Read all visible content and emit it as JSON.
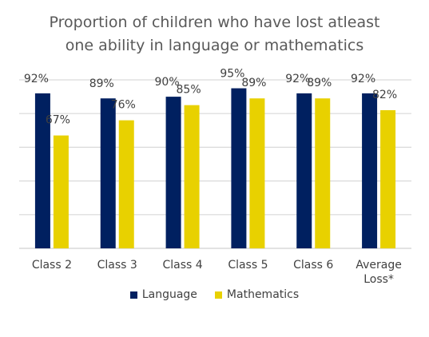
{
  "chart_data": {
    "type": "bar",
    "title": [
      "Proportion of children who have lost atleast",
      "one ability in language or mathematics"
    ],
    "categories": [
      [
        "Class 2"
      ],
      [
        "Class 3"
      ],
      [
        "Class 4"
      ],
      [
        "Class 5"
      ],
      [
        "Class 6"
      ],
      [
        "Average",
        "Loss*"
      ]
    ],
    "series": [
      {
        "name": "Language",
        "values": [
          92,
          89,
          90,
          95,
          92,
          92
        ],
        "labels": [
          "92%",
          "89%",
          "90%",
          "95%",
          "92%",
          "92%"
        ],
        "color": "#002060"
      },
      {
        "name": "Mathematics",
        "values": [
          67,
          76,
          85,
          89,
          89,
          82
        ],
        "labels": [
          "67%",
          "76%",
          "85%",
          "89%",
          "89%",
          "82%"
        ],
        "color": "#E8D100"
      }
    ],
    "ylim": [
      0,
      100
    ],
    "grid": true,
    "legend": "bottom",
    "gridline_color": "#D9D9D9"
  }
}
